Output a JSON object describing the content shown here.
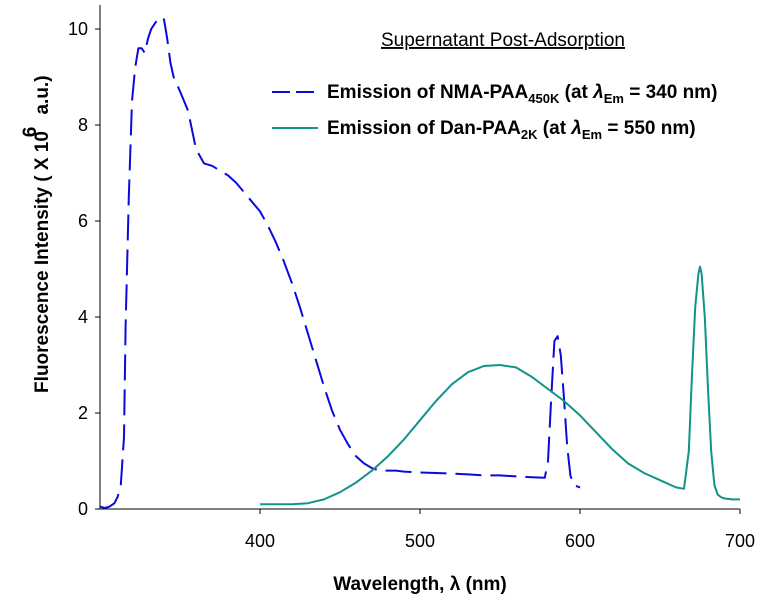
{
  "chart_data": {
    "type": "line",
    "title": "Supernatant Post-Adsorption",
    "xlabel": "Wavelength, λ (nm)",
    "ylabel_main": "Fluorescence Intensity ( X 10",
    "ylabel_exp": "6",
    "ylabel_unit": "a.u.)",
    "xlim": [
      300,
      700
    ],
    "ylim": [
      0,
      10.5
    ],
    "xticks": [
      400,
      500,
      600,
      700
    ],
    "yticks": [
      0,
      2,
      4,
      6,
      8,
      10
    ],
    "grid": false,
    "legend_position": "top-right",
    "legend": [
      {
        "pre": "Emission of NMA-PAA",
        "sub": "450K",
        "mid": " (at ",
        "lambda": "λ",
        "sub2": "Em",
        "post": " = 340 nm)"
      },
      {
        "pre": "Emission of Dan-PAA",
        "sub": "2K",
        "mid": " (at ",
        "lambda": "λ",
        "sub2": "Em",
        "post": " = 550 nm)"
      }
    ],
    "series": [
      {
        "color": "#0a0adc",
        "dash": "dashed",
        "x": [
          300,
          303,
          306,
          309,
          311,
          313,
          315,
          316,
          318,
          320,
          322,
          324,
          326,
          328,
          330,
          332,
          334,
          336,
          338,
          340,
          342,
          344,
          346,
          348,
          350,
          355,
          360,
          365,
          370,
          375,
          380,
          385,
          390,
          395,
          400,
          405,
          410,
          415,
          420,
          425,
          430,
          435,
          440,
          445,
          450,
          455,
          460,
          465,
          470,
          475,
          480,
          485,
          490,
          495,
          500,
          510,
          520,
          530,
          540,
          550,
          560,
          570,
          578,
          580,
          582,
          584,
          586,
          588,
          590,
          592,
          594,
          596,
          600
        ],
        "y": [
          0.05,
          0.02,
          0.05,
          0.12,
          0.25,
          0.5,
          1.5,
          3.8,
          6.5,
          8.5,
          9.2,
          9.6,
          9.6,
          9.5,
          9.8,
          10.0,
          10.1,
          10.2,
          10.25,
          10.2,
          9.8,
          9.3,
          9.0,
          8.85,
          8.7,
          8.3,
          7.5,
          7.2,
          7.15,
          7.05,
          6.95,
          6.8,
          6.6,
          6.4,
          6.2,
          5.9,
          5.55,
          5.15,
          4.7,
          4.2,
          3.65,
          3.1,
          2.55,
          2.05,
          1.65,
          1.35,
          1.1,
          0.95,
          0.85,
          0.8,
          0.8,
          0.8,
          0.78,
          0.77,
          0.76,
          0.75,
          0.74,
          0.72,
          0.7,
          0.7,
          0.68,
          0.66,
          0.65,
          1.0,
          2.3,
          3.5,
          3.6,
          3.2,
          2.3,
          1.3,
          0.7,
          0.5,
          0.45
        ]
      },
      {
        "color": "#11938b",
        "dash": "solid",
        "x": [
          400,
          410,
          420,
          430,
          440,
          450,
          460,
          470,
          480,
          490,
          500,
          510,
          520,
          530,
          540,
          550,
          560,
          570,
          580,
          590,
          600,
          610,
          620,
          630,
          640,
          650,
          660,
          665,
          668,
          670,
          672,
          674,
          675,
          676,
          678,
          680,
          682,
          684,
          686,
          688,
          690,
          695,
          700
        ],
        "y": [
          0.1,
          0.1,
          0.1,
          0.12,
          0.2,
          0.35,
          0.55,
          0.8,
          1.1,
          1.45,
          1.85,
          2.25,
          2.6,
          2.85,
          2.98,
          3.0,
          2.95,
          2.75,
          2.5,
          2.25,
          1.95,
          1.6,
          1.25,
          0.95,
          0.75,
          0.6,
          0.45,
          0.42,
          1.2,
          2.8,
          4.2,
          4.9,
          5.05,
          4.9,
          4.0,
          2.5,
          1.2,
          0.5,
          0.3,
          0.25,
          0.22,
          0.2,
          0.2
        ]
      }
    ]
  }
}
